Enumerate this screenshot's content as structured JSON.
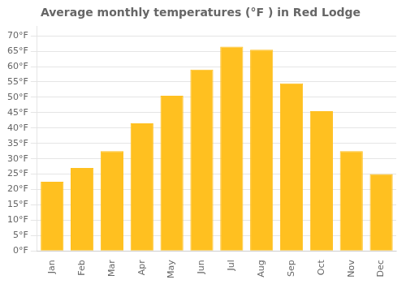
{
  "chart_data": {
    "type": "bar",
    "title": "Average monthly temperatures (°F ) in Red Lodge",
    "categories": [
      "Jan",
      "Feb",
      "Mar",
      "Apr",
      "May",
      "Jun",
      "Jul",
      "Aug",
      "Sep",
      "Oct",
      "Nov",
      "Dec"
    ],
    "values": [
      22.5,
      27.0,
      32.5,
      41.5,
      50.5,
      59.0,
      66.5,
      65.5,
      54.5,
      45.5,
      32.5,
      25.0
    ],
    "color": "#FFC020",
    "ylim": [
      0,
      73
    ],
    "yticks": [
      {
        "value": 0,
        "label": "0°F"
      },
      {
        "value": 5,
        "label": "5°F"
      },
      {
        "value": 10,
        "label": "10°F"
      },
      {
        "value": 15,
        "label": "15°F"
      },
      {
        "value": 20,
        "label": "20°F"
      },
      {
        "value": 25,
        "label": "25°F"
      },
      {
        "value": 30,
        "label": "30°F"
      },
      {
        "value": 35,
        "label": "35°F"
      },
      {
        "value": 40,
        "label": "40°F"
      },
      {
        "value": 45,
        "label": "45°F"
      },
      {
        "value": 50,
        "label": "50°F"
      },
      {
        "value": 55,
        "label": "55°F"
      },
      {
        "value": 60,
        "label": "60°F"
      },
      {
        "value": 65,
        "label": "65°F"
      },
      {
        "value": 70,
        "label": "70°F"
      }
    ],
    "grid": true
  }
}
